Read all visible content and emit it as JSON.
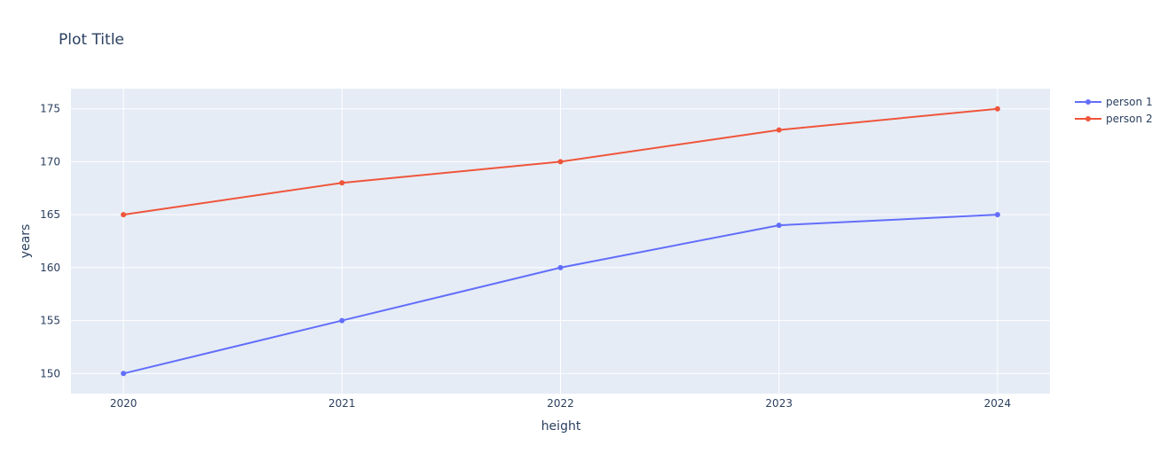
{
  "chart_data": {
    "type": "line",
    "title": "Plot Title",
    "xlabel": "height",
    "ylabel": "years",
    "x": [
      2020,
      2021,
      2022,
      2023,
      2024
    ],
    "series": [
      {
        "name": "person 1",
        "values": [
          150,
          155,
          160,
          164,
          165
        ],
        "color": "#636efa"
      },
      {
        "name": "person 2",
        "values": [
          165,
          168,
          170,
          173,
          175
        ],
        "color": "#ef553b"
      }
    ],
    "xlim": [
      2019.76,
      2024.24
    ],
    "ylim": [
      148.1,
      176.9
    ],
    "yticks": [
      150,
      155,
      160,
      165,
      170,
      175
    ],
    "grid": true,
    "legend": "right",
    "plot_background": "#e5ecf6",
    "grid_color": "#ffffff"
  }
}
